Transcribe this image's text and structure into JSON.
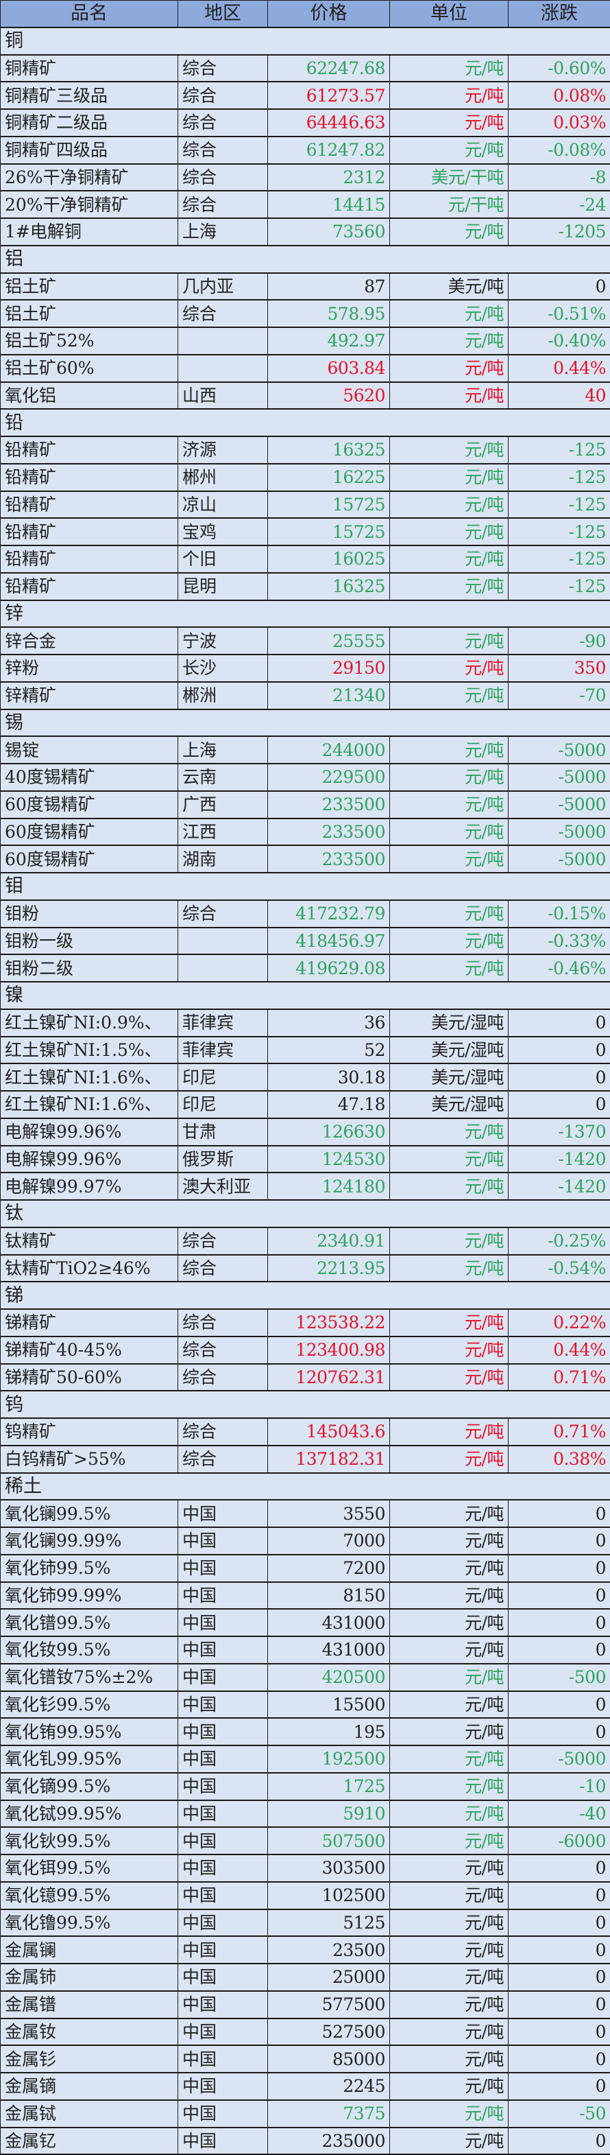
{
  "header": {
    "name": "品名",
    "region": "地区",
    "price": "价格",
    "unit": "单位",
    "change": "涨跌"
  },
  "colors": {
    "up": "#e3132a",
    "down": "#2ea45f",
    "flat": "#222222",
    "header_bg": "#8eaadb",
    "row_bg": "#dbe4f2"
  },
  "sections": [
    {
      "name": "铜",
      "rows": [
        {
          "name": "铜精矿",
          "region": "综合",
          "price": "62247.68",
          "unit": "元/吨",
          "change": "-0.60%",
          "trend": "g"
        },
        {
          "name": "铜精矿三级品",
          "region": "综合",
          "price": "61273.57",
          "unit": "元/吨",
          "change": "0.08%",
          "trend": "r"
        },
        {
          "name": "铜精矿二级品",
          "region": "综合",
          "price": "64446.63",
          "unit": "元/吨",
          "change": "0.03%",
          "trend": "r"
        },
        {
          "name": "铜精矿四级品",
          "region": "综合",
          "price": "61247.82",
          "unit": "元/吨",
          "change": "-0.08%",
          "trend": "g"
        },
        {
          "name": "26%干净铜精矿",
          "region": "综合",
          "price": "2312",
          "unit": "美元/干吨",
          "change": "-8",
          "trend": "g"
        },
        {
          "name": "20%干净铜精矿",
          "region": "综合",
          "price": "14415",
          "unit": "元/干吨",
          "change": "-24",
          "trend": "g"
        },
        {
          "name": "1#电解铜",
          "region": "上海",
          "price": "73560",
          "unit": "元/吨",
          "change": "-1205",
          "trend": "g"
        }
      ]
    },
    {
      "name": "铝",
      "rows": [
        {
          "name": "铝土矿",
          "region": "几内亚",
          "price": "87",
          "unit": "美元/吨",
          "change": "0",
          "trend": "k"
        },
        {
          "name": "铝土矿",
          "region": "综合",
          "price": "578.95",
          "unit": "元/吨",
          "change": "-0.51%",
          "trend": "g"
        },
        {
          "name": "铝土矿52%",
          "region": "",
          "price": "492.97",
          "unit": "元/吨",
          "change": "-0.40%",
          "trend": "g"
        },
        {
          "name": "铝土矿60%",
          "region": "",
          "price": "603.84",
          "unit": "元/吨",
          "change": "0.44%",
          "trend": "r"
        },
        {
          "name": "氧化铝",
          "region": "山西",
          "price": "5620",
          "unit": "元/吨",
          "change": "40",
          "trend": "r"
        }
      ]
    },
    {
      "name": "铅",
      "rows": [
        {
          "name": "铅精矿",
          "region": "济源",
          "price": "16325",
          "unit": "元/吨",
          "change": "-125",
          "trend": "g"
        },
        {
          "name": "铅精矿",
          "region": "郴州",
          "price": "16225",
          "unit": "元/吨",
          "change": "-125",
          "trend": "g"
        },
        {
          "name": "铅精矿",
          "region": "凉山",
          "price": "15725",
          "unit": "元/吨",
          "change": "-125",
          "trend": "g"
        },
        {
          "name": "铅精矿",
          "region": "宝鸡",
          "price": "15725",
          "unit": "元/吨",
          "change": "-125",
          "trend": "g"
        },
        {
          "name": "铅精矿",
          "region": "个旧",
          "price": "16025",
          "unit": "元/吨",
          "change": "-125",
          "trend": "g"
        },
        {
          "name": "铅精矿",
          "region": "昆明",
          "price": "16325",
          "unit": "元/吨",
          "change": "-125",
          "trend": "g"
        }
      ]
    },
    {
      "name": "锌",
      "rows": [
        {
          "name": "锌合金",
          "region": "宁波",
          "price": "25555",
          "unit": "元/吨",
          "change": "-90",
          "trend": "g"
        },
        {
          "name": "锌粉",
          "region": "长沙",
          "price": "29150",
          "unit": "元/吨",
          "change": "350",
          "trend": "r"
        },
        {
          "name": "锌精矿",
          "region": "郴洲",
          "price": "21340",
          "unit": "元/吨",
          "change": "-70",
          "trend": "g"
        }
      ]
    },
    {
      "name": "锡",
      "rows": [
        {
          "name": "锡锭",
          "region": "上海",
          "price": "244000",
          "unit": "元/吨",
          "change": "-5000",
          "trend": "g"
        },
        {
          "name": "40度锡精矿",
          "region": "云南",
          "price": "229500",
          "unit": "元/吨",
          "change": "-5000",
          "trend": "g"
        },
        {
          "name": "60度锡精矿",
          "region": "广西",
          "price": "233500",
          "unit": "元/吨",
          "change": "-5000",
          "trend": "g"
        },
        {
          "name": "60度锡精矿",
          "region": "江西",
          "price": "233500",
          "unit": "元/吨",
          "change": "-5000",
          "trend": "g"
        },
        {
          "name": "60度锡精矿",
          "region": "湖南",
          "price": "233500",
          "unit": "元/吨",
          "change": "-5000",
          "trend": "g"
        }
      ]
    },
    {
      "name": "钼",
      "rows": [
        {
          "name": "钼粉",
          "region": "综合",
          "price": "417232.79",
          "unit": "元/吨",
          "change": "-0.15%",
          "trend": "g"
        },
        {
          "name": "钼粉一级",
          "region": "",
          "price": "418456.97",
          "unit": "元/吨",
          "change": "-0.33%",
          "trend": "g"
        },
        {
          "name": "钼粉二级",
          "region": "",
          "price": "419629.08",
          "unit": "元/吨",
          "change": "-0.46%",
          "trend": "g"
        }
      ]
    },
    {
      "name": "镍",
      "rows": [
        {
          "name": "红土镍矿NI:0.9%、",
          "region": "菲律宾",
          "price": "36",
          "unit": "美元/湿吨",
          "change": "0",
          "trend": "k"
        },
        {
          "name": "红土镍矿NI:1.5%、",
          "region": "菲律宾",
          "price": "52",
          "unit": "美元/湿吨",
          "change": "0",
          "trend": "k"
        },
        {
          "name": "红土镍矿NI:1.6%、",
          "region": "印尼",
          "price": "30.18",
          "unit": "美元/湿吨",
          "change": "0",
          "trend": "k"
        },
        {
          "name": "红土镍矿NI:1.6%、",
          "region": "印尼",
          "price": "47.18",
          "unit": "美元/湿吨",
          "change": "0",
          "trend": "k"
        },
        {
          "name": "电解镍99.96%",
          "region": "甘肃",
          "price": "126630",
          "unit": "元/吨",
          "change": "-1370",
          "trend": "g"
        },
        {
          "name": "电解镍99.96%",
          "region": "俄罗斯",
          "price": "124530",
          "unit": "元/吨",
          "change": "-1420",
          "trend": "g"
        },
        {
          "name": "电解镍99.97%",
          "region": "澳大利亚",
          "price": "124180",
          "unit": "元/吨",
          "change": "-1420",
          "trend": "g"
        }
      ]
    },
    {
      "name": "钛",
      "rows": [
        {
          "name": "钛精矿",
          "region": "综合",
          "price": "2340.91",
          "unit": "元/吨",
          "change": "-0.25%",
          "trend": "g"
        },
        {
          "name": "钛精矿TiO2≥46%",
          "region": "综合",
          "price": "2213.95",
          "unit": "元/吨",
          "change": "-0.54%",
          "trend": "g"
        }
      ]
    },
    {
      "name": "锑",
      "rows": [
        {
          "name": "锑精矿",
          "region": "综合",
          "price": "123538.22",
          "unit": "元/吨",
          "change": "0.22%",
          "trend": "r"
        },
        {
          "name": "锑精矿40-45%",
          "region": "综合",
          "price": "123400.98",
          "unit": "元/吨",
          "change": "0.44%",
          "trend": "r"
        },
        {
          "name": "锑精矿50-60%",
          "region": "综合",
          "price": "120762.31",
          "unit": "元/吨",
          "change": "0.71%",
          "trend": "r"
        }
      ]
    },
    {
      "name": "钨",
      "rows": [
        {
          "name": "钨精矿",
          "region": "综合",
          "price": "145043.6",
          "unit": "元/吨",
          "change": "0.71%",
          "trend": "r"
        },
        {
          "name": "白钨精矿>55%",
          "region": "综合",
          "price": "137182.31",
          "unit": "元/吨",
          "change": "0.38%",
          "trend": "r"
        }
      ]
    },
    {
      "name": "稀土",
      "rows": [
        {
          "name": "氧化镧99.5%",
          "region": "中国",
          "price": "3550",
          "unit": "元/吨",
          "change": "0",
          "trend": "k"
        },
        {
          "name": "氧化镧99.99%",
          "region": "中国",
          "price": "7000",
          "unit": "元/吨",
          "change": "0",
          "trend": "k"
        },
        {
          "name": "氧化铈99.5%",
          "region": "中国",
          "price": "7200",
          "unit": "元/吨",
          "change": "0",
          "trend": "k"
        },
        {
          "name": "氧化铈99.99%",
          "region": "中国",
          "price": "8150",
          "unit": "元/吨",
          "change": "0",
          "trend": "k"
        },
        {
          "name": "氧化镨99.5%",
          "region": "中国",
          "price": "431000",
          "unit": "元/吨",
          "change": "0",
          "trend": "k"
        },
        {
          "name": "氧化钕99.5%",
          "region": "中国",
          "price": "431000",
          "unit": "元/吨",
          "change": "0",
          "trend": "k"
        },
        {
          "name": "氧化镨钕75%±2%",
          "region": "中国",
          "price": "420500",
          "unit": "元/吨",
          "change": "-500",
          "trend": "g"
        },
        {
          "name": "氧化钐99.5%",
          "region": "中国",
          "price": "15500",
          "unit": "元/吨",
          "change": "0",
          "trend": "k"
        },
        {
          "name": "氧化铕99.95%",
          "region": "中国",
          "price": "195",
          "unit": "元/吨",
          "change": "0",
          "trend": "k"
        },
        {
          "name": "氧化钆99.95%",
          "region": "中国",
          "price": "192500",
          "unit": "元/吨",
          "change": "-5000",
          "trend": "g"
        },
        {
          "name": "氧化镝99.5%",
          "region": "中国",
          "price": "1725",
          "unit": "元/吨",
          "change": "-10",
          "trend": "g"
        },
        {
          "name": "氧化铽99.95%",
          "region": "中国",
          "price": "5910",
          "unit": "元/吨",
          "change": "-40",
          "trend": "g"
        },
        {
          "name": "氧化钬99.5%",
          "region": "中国",
          "price": "507500",
          "unit": "元/吨",
          "change": "-6000",
          "trend": "g"
        },
        {
          "name": "氧化铒99.5%",
          "region": "中国",
          "price": "303500",
          "unit": "元/吨",
          "change": "0",
          "trend": "k"
        },
        {
          "name": "氧化镱99.5%",
          "region": "中国",
          "price": "102500",
          "unit": "元/吨",
          "change": "0",
          "trend": "k"
        },
        {
          "name": "氧化镥99.5%",
          "region": "中国",
          "price": "5125",
          "unit": "元/吨",
          "change": "0",
          "trend": "k"
        },
        {
          "name": "金属镧",
          "region": "中国",
          "price": "23500",
          "unit": "元/吨",
          "change": "0",
          "trend": "k"
        },
        {
          "name": "金属铈",
          "region": "中国",
          "price": "25000",
          "unit": "元/吨",
          "change": "0",
          "trend": "k"
        },
        {
          "name": "金属镨",
          "region": "中国",
          "price": "577500",
          "unit": "元/吨",
          "change": "0",
          "trend": "k"
        },
        {
          "name": "金属钕",
          "region": "中国",
          "price": "527500",
          "unit": "元/吨",
          "change": "0",
          "trend": "k"
        },
        {
          "name": "金属钐",
          "region": "中国",
          "price": "85000",
          "unit": "元/吨",
          "change": "0",
          "trend": "k"
        },
        {
          "name": "金属镝",
          "region": "中国",
          "price": "2245",
          "unit": "元/吨",
          "change": "0",
          "trend": "k"
        },
        {
          "name": "金属铽",
          "region": "中国",
          "price": "7375",
          "unit": "元/吨",
          "change": "-50",
          "trend": "g"
        },
        {
          "name": "金属钇",
          "region": "中国",
          "price": "235000",
          "unit": "元/吨",
          "change": "0",
          "trend": "k"
        }
      ]
    }
  ]
}
